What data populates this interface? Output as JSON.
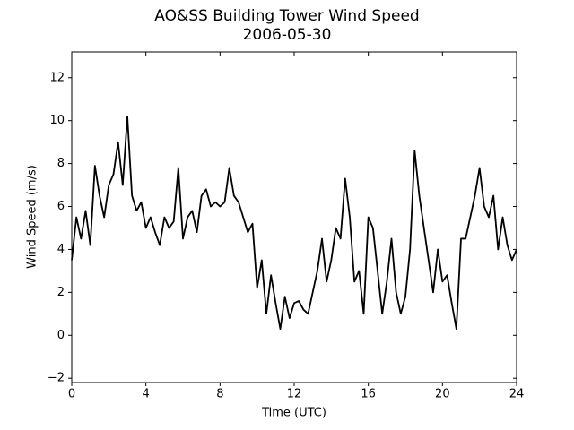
{
  "chart_data": {
    "type": "line",
    "title": "AO&SS Building Tower Wind Speed",
    "subtitle": "2006-05-30",
    "x_label": "Time (UTC)",
    "y_label": "Wind Speed (m/s)",
    "x": [
      0,
      0.25,
      0.5,
      0.75,
      1,
      1.25,
      1.5,
      1.75,
      2,
      2.25,
      2.5,
      2.75,
      3,
      3.25,
      3.5,
      3.75,
      4,
      4.25,
      4.5,
      4.75,
      5,
      5.25,
      5.5,
      5.75,
      6,
      6.25,
      6.5,
      6.75,
      7,
      7.25,
      7.5,
      7.75,
      8,
      8.25,
      8.5,
      8.75,
      9,
      9.25,
      9.5,
      9.75,
      10,
      10.25,
      10.5,
      10.75,
      11,
      11.25,
      11.5,
      11.75,
      12,
      12.25,
      12.5,
      12.75,
      13,
      13.25,
      13.5,
      13.75,
      14,
      14.25,
      14.5,
      14.75,
      15,
      15.25,
      15.5,
      15.75,
      16,
      16.25,
      16.5,
      16.75,
      17,
      17.25,
      17.5,
      17.75,
      18,
      18.25,
      18.5,
      18.75,
      19,
      19.25,
      19.5,
      19.75,
      20,
      20.25,
      20.5,
      20.75,
      21,
      21.25,
      21.5,
      21.75,
      22,
      22.25,
      22.5,
      22.75,
      23,
      23.25,
      23.5,
      23.75,
      24
    ],
    "series": [
      {
        "name": "Wind Speed",
        "color": "#000000",
        "values": [
          3.5,
          5.5,
          4.5,
          5.8,
          4.2,
          7.9,
          6.5,
          5.5,
          7.0,
          7.5,
          9.0,
          7.0,
          10.2,
          6.5,
          5.8,
          6.2,
          5.0,
          5.5,
          4.8,
          4.2,
          5.5,
          5.0,
          5.3,
          7.8,
          4.5,
          5.5,
          5.8,
          4.8,
          6.5,
          6.8,
          6.0,
          6.2,
          6.0,
          6.2,
          7.8,
          6.5,
          6.2,
          5.5,
          4.8,
          5.2,
          2.2,
          3.5,
          1.0,
          2.8,
          1.5,
          0.3,
          1.8,
          0.8,
          1.5,
          1.6,
          1.2,
          1.0,
          2.0,
          3.0,
          4.5,
          2.5,
          3.5,
          5.0,
          4.5,
          7.3,
          5.5,
          2.5,
          3.0,
          1.0,
          5.5,
          5.0,
          3.0,
          1.0,
          2.5,
          4.5,
          2.0,
          1.0,
          1.8,
          4.0,
          8.6,
          6.5,
          5.0,
          3.5,
          2.0,
          4.0,
          2.5,
          2.8,
          1.5,
          0.3,
          4.5,
          4.5,
          5.5,
          6.5,
          7.8,
          6.0,
          5.5,
          6.5,
          4.0,
          5.5,
          4.2,
          3.5,
          4.0
        ]
      }
    ],
    "xlim": [
      0,
      24
    ],
    "xticks": [
      0,
      4,
      8,
      12,
      16,
      20,
      24
    ],
    "ylim": [
      -2.2,
      13.2
    ],
    "yticks": [
      {
        "value": -2,
        "label": "−2"
      },
      0,
      2,
      4,
      6,
      8,
      10,
      12
    ]
  }
}
